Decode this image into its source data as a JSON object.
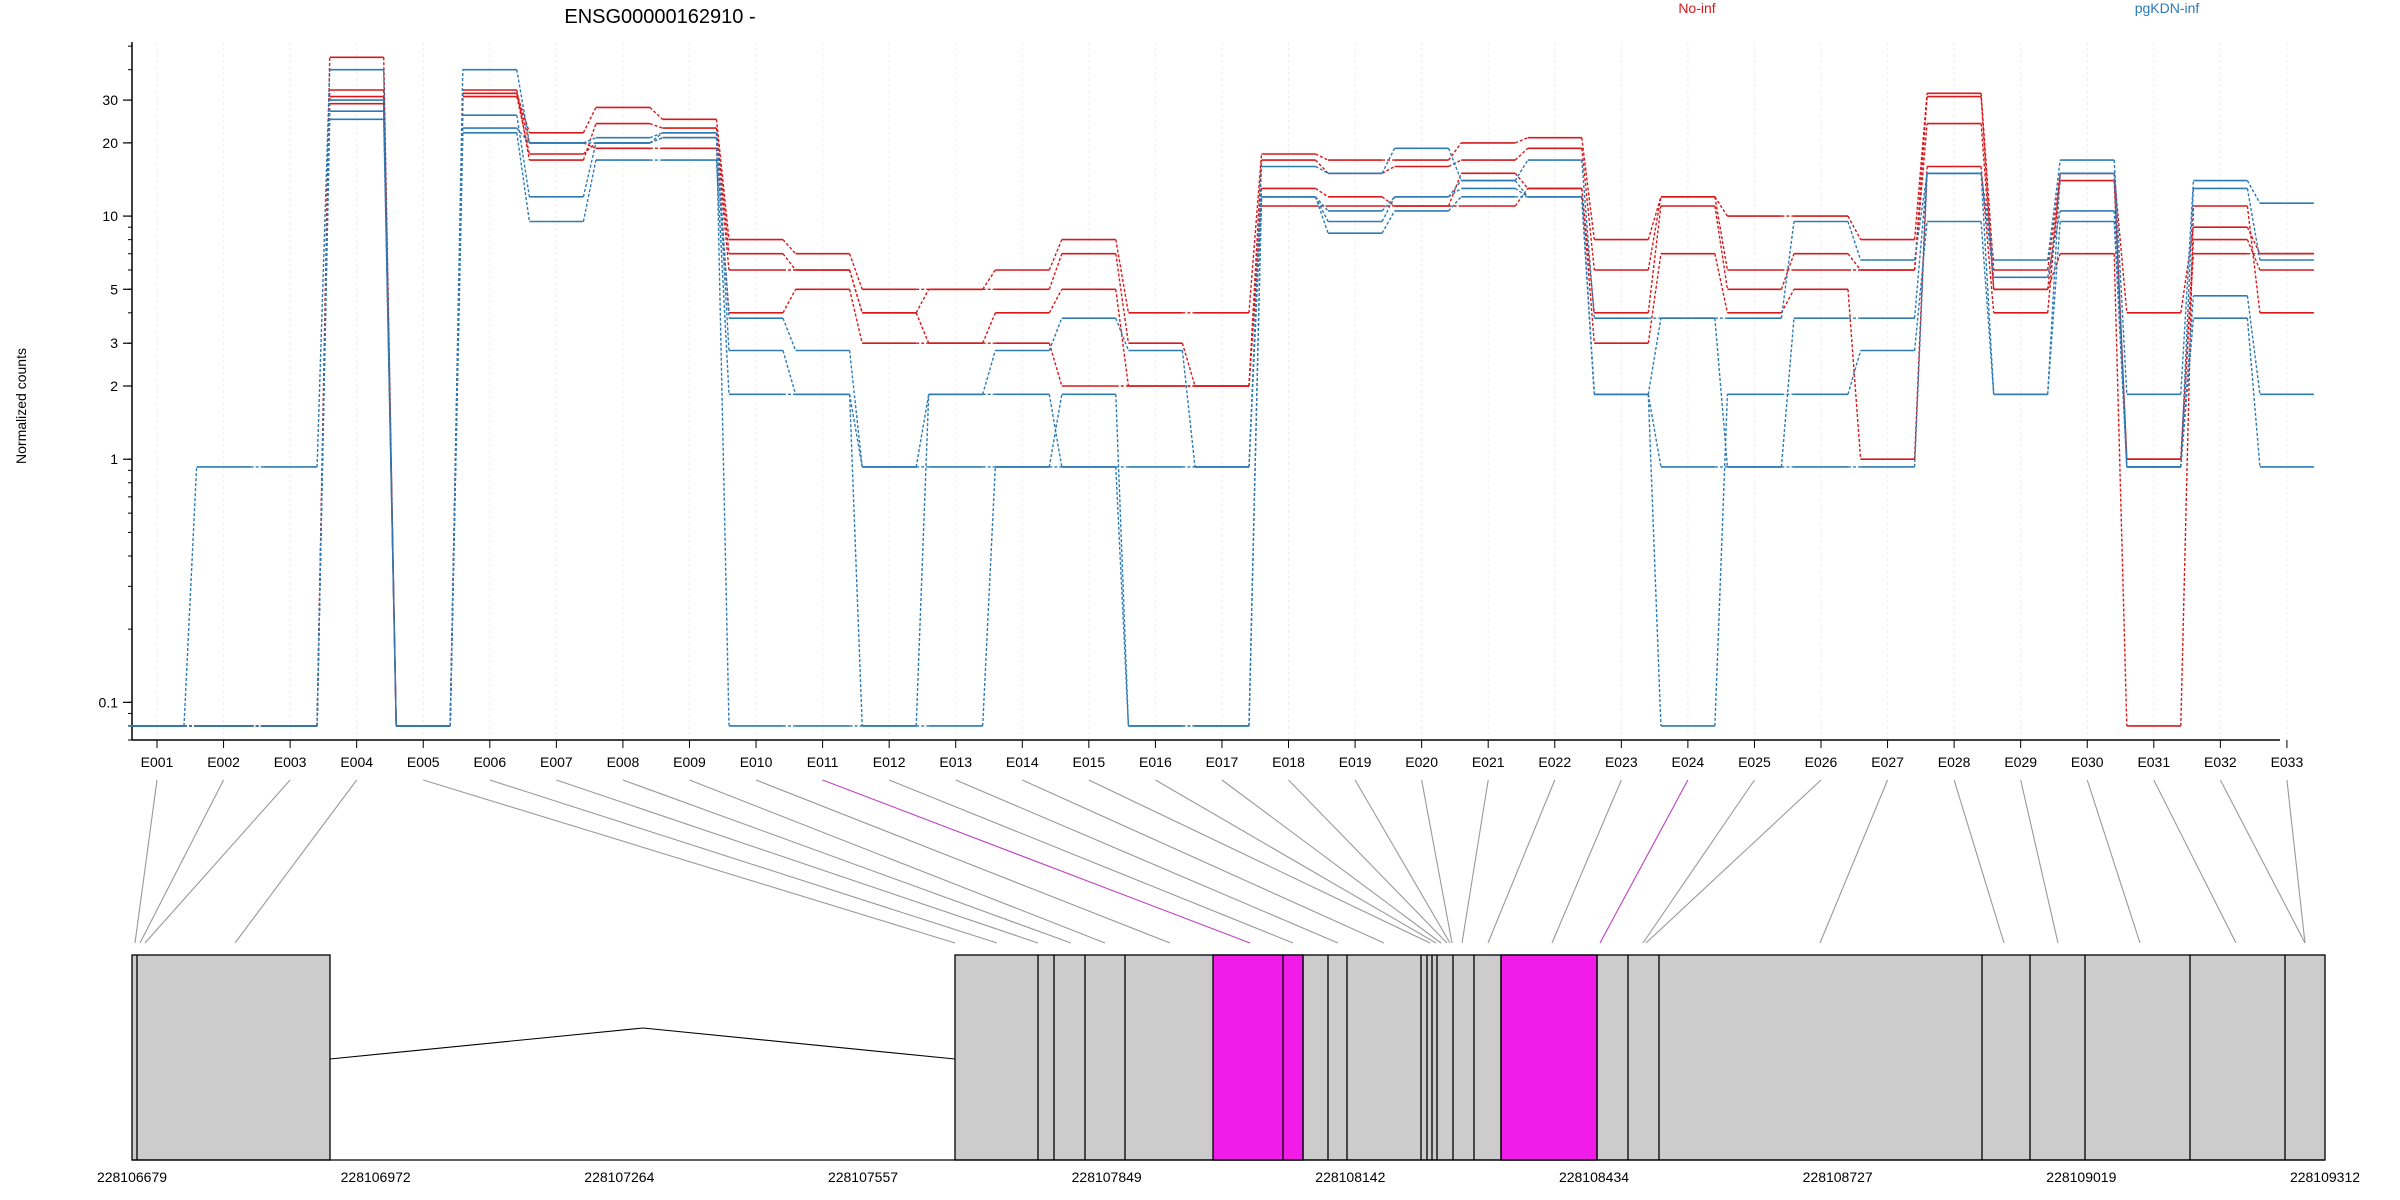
{
  "chart_data": {
    "type": "line",
    "title": "ENSG00000162910 -",
    "xlabel": "",
    "ylabel": "Normalized counts",
    "y_scale": "log",
    "ylim": [
      0.07,
      52
    ],
    "yticks": [
      0.1,
      1,
      2,
      3,
      5,
      10,
      20,
      30
    ],
    "ytick_labels": [
      "0.1",
      "1",
      "2",
      "3",
      "5",
      "10",
      "20",
      "30"
    ],
    "legend": [
      {
        "name": "No-inf",
        "color": "#d7191c"
      },
      {
        "name": "pgKDN-inf",
        "color": "#2c7bb6"
      }
    ],
    "categories": [
      "E001",
      "E002",
      "E003",
      "E004",
      "E005",
      "E006",
      "E007",
      "E008",
      "E009",
      "E010",
      "E011",
      "E012",
      "E013",
      "E014",
      "E015",
      "E016",
      "E017",
      "E018",
      "E019",
      "E020",
      "E021",
      "E022",
      "E023",
      "E024",
      "E025",
      "E026",
      "E027",
      "E028",
      "E029",
      "E030",
      "E031",
      "E032",
      "E033"
    ],
    "series": [
      {
        "group": "No-inf",
        "color": "#d7191c",
        "values": [
          0.08,
          0.08,
          0.08,
          45,
          0.08,
          32,
          22,
          28,
          25,
          8,
          7,
          5,
          5,
          6,
          8,
          4,
          4,
          18,
          17,
          17,
          20,
          21,
          8,
          12,
          10,
          10,
          8,
          32,
          6,
          15,
          4,
          9,
          7
        ]
      },
      {
        "group": "No-inf",
        "color": "#d7191c",
        "values": [
          0.08,
          0.08,
          0.08,
          31,
          0.08,
          33,
          17,
          24,
          23,
          7,
          6,
          4,
          5,
          5,
          7,
          3,
          2,
          17,
          15,
          16,
          17,
          19,
          6,
          12,
          6,
          6,
          6,
          31,
          5,
          14,
          1,
          8,
          6
        ]
      },
      {
        "group": "No-inf",
        "color": "#d7191c",
        "values": [
          0.08,
          0.08,
          0.08,
          29,
          0.08,
          31,
          18,
          20,
          21,
          6,
          6,
          4,
          3,
          4,
          5,
          2,
          2,
          13,
          12,
          11,
          15,
          13,
          4,
          11,
          5,
          7,
          6,
          24,
          5,
          7,
          0.08,
          11,
          4
        ]
      },
      {
        "group": "No-inf",
        "color": "#d7191c",
        "values": [
          0.08,
          0.08,
          0.08,
          33,
          0.08,
          32,
          20,
          19,
          19,
          4,
          5,
          3,
          3,
          3,
          2,
          2,
          2,
          11,
          11,
          11,
          11,
          13,
          3,
          7,
          4,
          5,
          1,
          16,
          4,
          15,
          1,
          7,
          7
        ]
      },
      {
        "group": "pgKDN-inf",
        "color": "#2c7bb6",
        "values": [
          0.08,
          0.93,
          0.93,
          40,
          0.08,
          40,
          20,
          21,
          22,
          3.8,
          2.8,
          0.93,
          1.85,
          2.8,
          3.8,
          2.8,
          0.93,
          16,
          15,
          19,
          14,
          17,
          3.8,
          3.8,
          3.8,
          9.5,
          6.6,
          15,
          6.6,
          17,
          1.85,
          14,
          11.3
        ]
      },
      {
        "group": "pgKDN-inf",
        "color": "#2c7bb6",
        "values": [
          0.08,
          0.08,
          0.08,
          27,
          0.08,
          26,
          12,
          20,
          21,
          2.8,
          1.85,
          0.93,
          0.93,
          0.93,
          0.93,
          0.93,
          0.93,
          12,
          10.5,
          12,
          13,
          12,
          1.85,
          0.93,
          0.93,
          3.8,
          3.8,
          15,
          5.6,
          10.5,
          0.93,
          13,
          6.6
        ]
      },
      {
        "group": "pgKDN-inf",
        "color": "#2c7bb6",
        "values": [
          0.08,
          0.08,
          0.08,
          25,
          0.08,
          22,
          9.5,
          17,
          17,
          1.85,
          1.85,
          0.08,
          0.08,
          0.93,
          1.85,
          0.08,
          0.08,
          12,
          8.5,
          10.5,
          12,
          12,
          1.85,
          0.08,
          1.85,
          1.85,
          2.8,
          9.5,
          1.85,
          9.5,
          0.93,
          4.7,
          1.85
        ]
      },
      {
        "group": "pgKDN-inf",
        "color": "#2c7bb6",
        "values": [
          0.08,
          0.08,
          0.08,
          30,
          0.08,
          23,
          20,
          20,
          22,
          0.08,
          0.08,
          0.08,
          1.85,
          1.85,
          0.93,
          0.08,
          0.08,
          12,
          9.5,
          12,
          14,
          12,
          1.85,
          3.8,
          0.93,
          0.93,
          0.93,
          15,
          1.85,
          15,
          0.93,
          3.8,
          0.93
        ]
      }
    ],
    "gene_model": {
      "coordinate_ticks": [
        "228106679",
        "228106972",
        "228107264",
        "228107557",
        "228107849",
        "228108142",
        "228108434",
        "228108727",
        "228109019",
        "228109312"
      ],
      "highlighted_exons": [
        "E011",
        "E024"
      ],
      "highlight_color": "#f21ce8",
      "exon_color": "#cccccc"
    }
  }
}
